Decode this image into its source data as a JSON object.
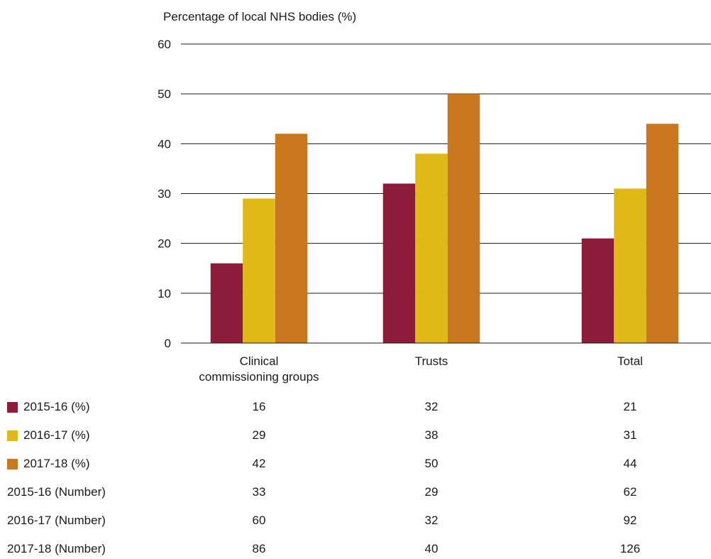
{
  "chart_data": {
    "type": "bar",
    "ylabel": "Percentage of local NHS bodies (%)",
    "categories": [
      "Clinical\ncommissioning groups",
      "Trusts",
      "Total"
    ],
    "ylim": [
      0,
      60
    ],
    "yticks": [
      0,
      10,
      20,
      30,
      40,
      50,
      60
    ],
    "grid": true,
    "series": [
      {
        "name": "2015-16 (%)",
        "values": [
          16,
          32,
          21
        ],
        "color": "#8C1D3A"
      },
      {
        "name": "2016-17 (%)",
        "values": [
          29,
          38,
          31
        ],
        "color": "#E0B918"
      },
      {
        "name": "2017-18 (%)",
        "values": [
          42,
          50,
          44
        ],
        "color": "#C97820"
      }
    ],
    "table": [
      {
        "label": "2015-16 (%)",
        "swatch": "#8C1D3A",
        "values": [
          "16",
          "32",
          "21"
        ]
      },
      {
        "label": "2016-17 (%)",
        "swatch": "#E0B918",
        "values": [
          "29",
          "38",
          "31"
        ]
      },
      {
        "label": "2017-18 (%)",
        "swatch": "#C97820",
        "values": [
          "42",
          "50",
          "44"
        ]
      },
      {
        "label": "2015-16 (Number)",
        "values": [
          "33",
          "29",
          "62"
        ]
      },
      {
        "label": "2016-17 (Number)",
        "values": [
          "60",
          "32",
          "92"
        ]
      },
      {
        "label": "2017-18 (Number)",
        "values": [
          "86",
          "40",
          "126"
        ]
      }
    ]
  }
}
